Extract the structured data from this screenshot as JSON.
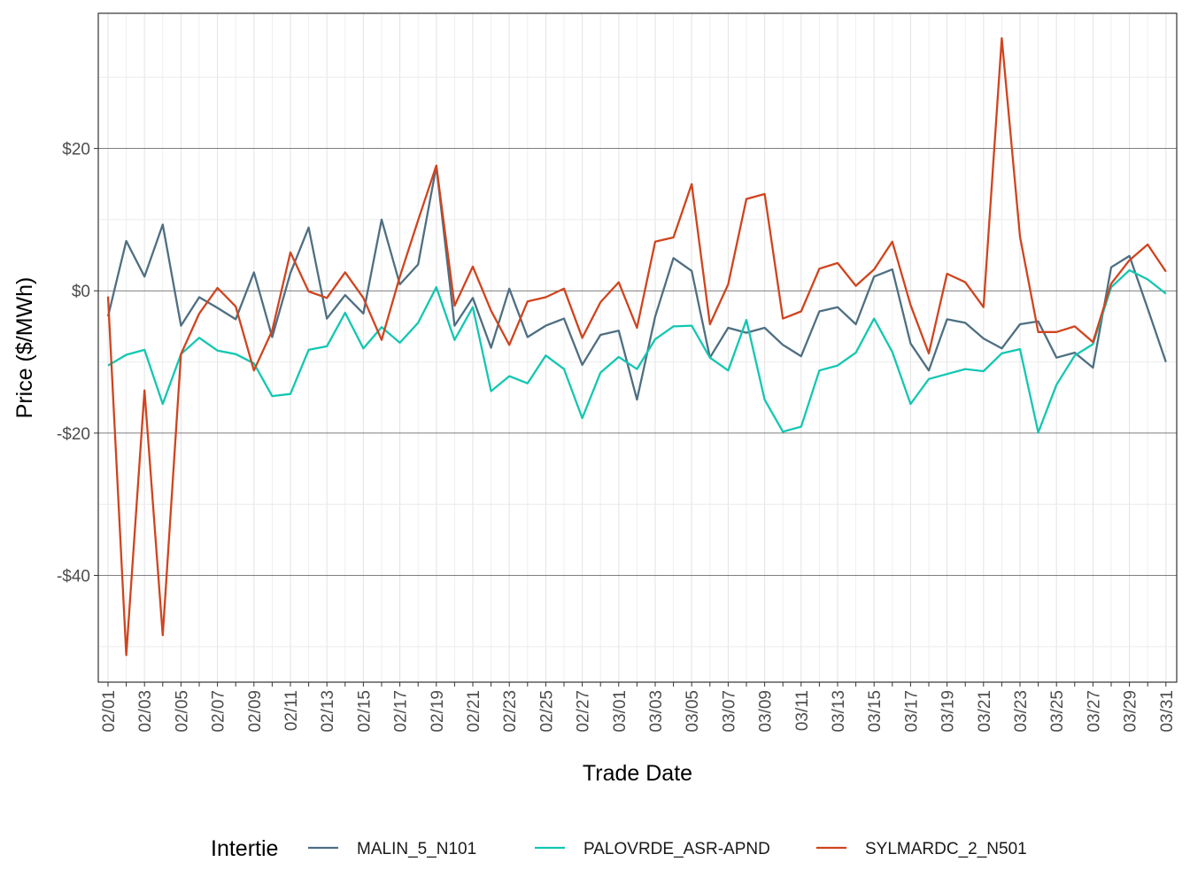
{
  "chart_data": {
    "type": "line",
    "xlabel": "Trade Date",
    "ylabel": "Price ($/MWh)",
    "ylim": [
      -55,
      39
    ],
    "y_ticks": [
      20,
      0,
      -20,
      -40
    ],
    "y_tick_labels": [
      "$20",
      "$0",
      "-$20",
      "-$40"
    ],
    "legend_title": "Intertie",
    "legend_position": "bottom",
    "x": [
      "02/01",
      "02/02",
      "02/03",
      "02/04",
      "02/05",
      "02/06",
      "02/07",
      "02/08",
      "02/09",
      "02/10",
      "02/11",
      "02/12",
      "02/13",
      "02/14",
      "02/15",
      "02/16",
      "02/17",
      "02/18",
      "02/19",
      "02/20",
      "02/21",
      "02/22",
      "02/23",
      "02/24",
      "02/25",
      "02/26",
      "02/27",
      "02/28",
      "03/01",
      "03/02",
      "03/03",
      "03/04",
      "03/05",
      "03/06",
      "03/07",
      "03/08",
      "03/09",
      "03/10",
      "03/11",
      "03/12",
      "03/13",
      "03/14",
      "03/15",
      "03/16",
      "03/17",
      "03/18",
      "03/19",
      "03/20",
      "03/21",
      "03/22",
      "03/23",
      "03/24",
      "03/25",
      "03/26",
      "03/27",
      "03/28",
      "03/29",
      "03/30",
      "03/31"
    ],
    "x_tick_labels": [
      "02/01",
      "02/03",
      "02/05",
      "02/07",
      "02/09",
      "02/11",
      "02/13",
      "02/15",
      "02/17",
      "02/19",
      "02/21",
      "02/23",
      "02/25",
      "02/27",
      "03/01",
      "03/03",
      "03/05",
      "03/07",
      "03/09",
      "03/11",
      "03/13",
      "03/15",
      "03/17",
      "03/19",
      "03/21",
      "03/23",
      "03/25",
      "03/27",
      "03/29",
      "03/31"
    ],
    "series": [
      {
        "name": "MALIN_5_N101",
        "color": "#4E6F82",
        "values": [
          -3.6,
          7.0,
          2.0,
          9.3,
          -4.9,
          -0.9,
          -2.4,
          -4.0,
          2.6,
          -6.5,
          2.5,
          8.9,
          -3.9,
          -0.6,
          -3.2,
          10.0,
          0.9,
          3.7,
          17.5,
          -4.9,
          -1.0,
          -8.0,
          0.3,
          -6.5,
          -4.9,
          -3.9,
          -10.4,
          -6.2,
          -5.6,
          -15.3,
          -3.6,
          4.6,
          2.8,
          -9.4,
          -5.2,
          -5.9,
          -5.2,
          -7.6,
          -9.2,
          -2.9,
          -2.3,
          -4.7,
          2.0,
          3.0,
          -7.4,
          -11.2,
          -4.0,
          -4.5,
          -6.7,
          -8.1,
          -4.7,
          -4.3,
          -9.4,
          -8.7,
          -10.8,
          3.3,
          4.9,
          -2.5,
          -10.0
        ]
      },
      {
        "name": "PALOVRDE_ASR-APND",
        "color": "#12C7B2",
        "values": [
          -10.5,
          -9.0,
          -8.3,
          -15.9,
          -8.9,
          -6.6,
          -8.4,
          -8.9,
          -10.2,
          -14.8,
          -14.5,
          -8.3,
          -7.8,
          -3.1,
          -8.1,
          -5.1,
          -7.3,
          -4.5,
          0.5,
          -6.9,
          -2.3,
          -14.1,
          -12.0,
          -13.0,
          -9.1,
          -11.0,
          -17.9,
          -11.5,
          -9.3,
          -11.0,
          -6.8,
          -5.0,
          -4.9,
          -9.4,
          -11.2,
          -4.1,
          -15.3,
          -19.8,
          -19.1,
          -11.2,
          -10.5,
          -8.7,
          -3.9,
          -8.6,
          -15.9,
          -12.4,
          -11.7,
          -11.0,
          -11.3,
          -8.8,
          -8.2,
          -19.9,
          -13.2,
          -9.1,
          -7.5,
          0.5,
          2.9,
          1.6,
          -0.4
        ]
      },
      {
        "name": "SYLMARDC_2_N501",
        "color": "#D0441E",
        "values": [
          -0.8,
          -51.2,
          -14.0,
          -48.4,
          -8.9,
          -3.2,
          0.4,
          -2.2,
          -11.2,
          -5.6,
          5.4,
          -0.1,
          -1.0,
          2.6,
          -1.0,
          -6.9,
          2.0,
          9.9,
          17.6,
          -2.1,
          3.4,
          -2.8,
          -7.6,
          -1.5,
          -0.9,
          0.3,
          -6.6,
          -1.6,
          1.2,
          -5.2,
          6.9,
          7.5,
          15.0,
          -4.7,
          0.9,
          12.9,
          13.6,
          -3.9,
          -2.9,
          3.1,
          3.9,
          0.7,
          3.0,
          6.9,
          -2.0,
          -8.8,
          2.4,
          1.2,
          -2.3,
          35.5,
          7.6,
          -5.8,
          -5.8,
          -5.0,
          -7.2,
          1.0,
          4.3,
          6.5,
          2.7
        ]
      }
    ]
  }
}
